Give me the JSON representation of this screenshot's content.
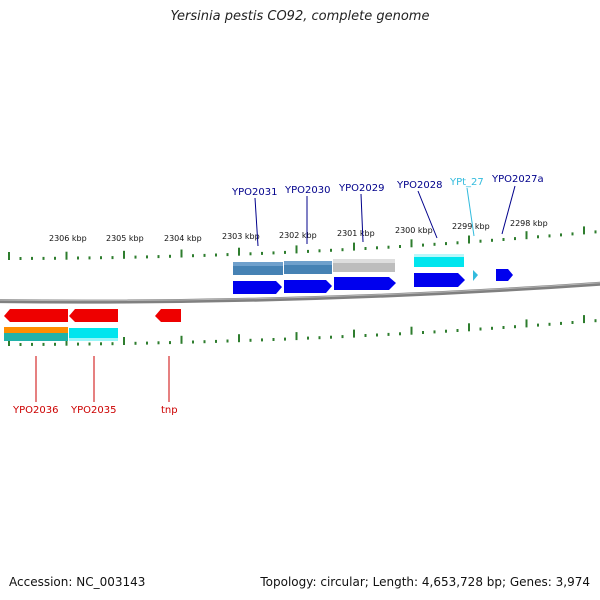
{
  "title": "Yersinia pestis CO92, complete genome",
  "footer": {
    "accession": "Accession: NC_003143",
    "summary": "Topology: circular; Length: 4,653,728 bp; Genes: 3,974"
  },
  "colors": {
    "forward_gene": "#0000ee",
    "reverse_gene": "#ee0000",
    "forward_label": "#00008b",
    "reverse_label": "#cc0000",
    "trna_label": "#33bbdd",
    "ticks": "#2e7d2e",
    "backbone": "#808080"
  },
  "scale": {
    "tick_labels": [
      "2306 kbp",
      "2305 kbp",
      "2304 kbp",
      "2303 kbp",
      "2302 kbp",
      "2301 kbp",
      "2300 kbp",
      "2299 kbp",
      "2298 kbp"
    ]
  },
  "genes": [
    {
      "label": "YPO2031",
      "strand": "forward"
    },
    {
      "label": "YPO2030",
      "strand": "forward"
    },
    {
      "label": "YPO2029",
      "strand": "forward"
    },
    {
      "label": "YPO2028",
      "strand": "forward"
    },
    {
      "label": "YPt_27",
      "strand": "forward",
      "type": "tRNA"
    },
    {
      "label": "YPO2027a",
      "strand": "forward"
    },
    {
      "label": "YPO2036",
      "strand": "reverse"
    },
    {
      "label": "YPO2035",
      "strand": "reverse"
    },
    {
      "label": "tnp",
      "strand": "reverse"
    }
  ]
}
